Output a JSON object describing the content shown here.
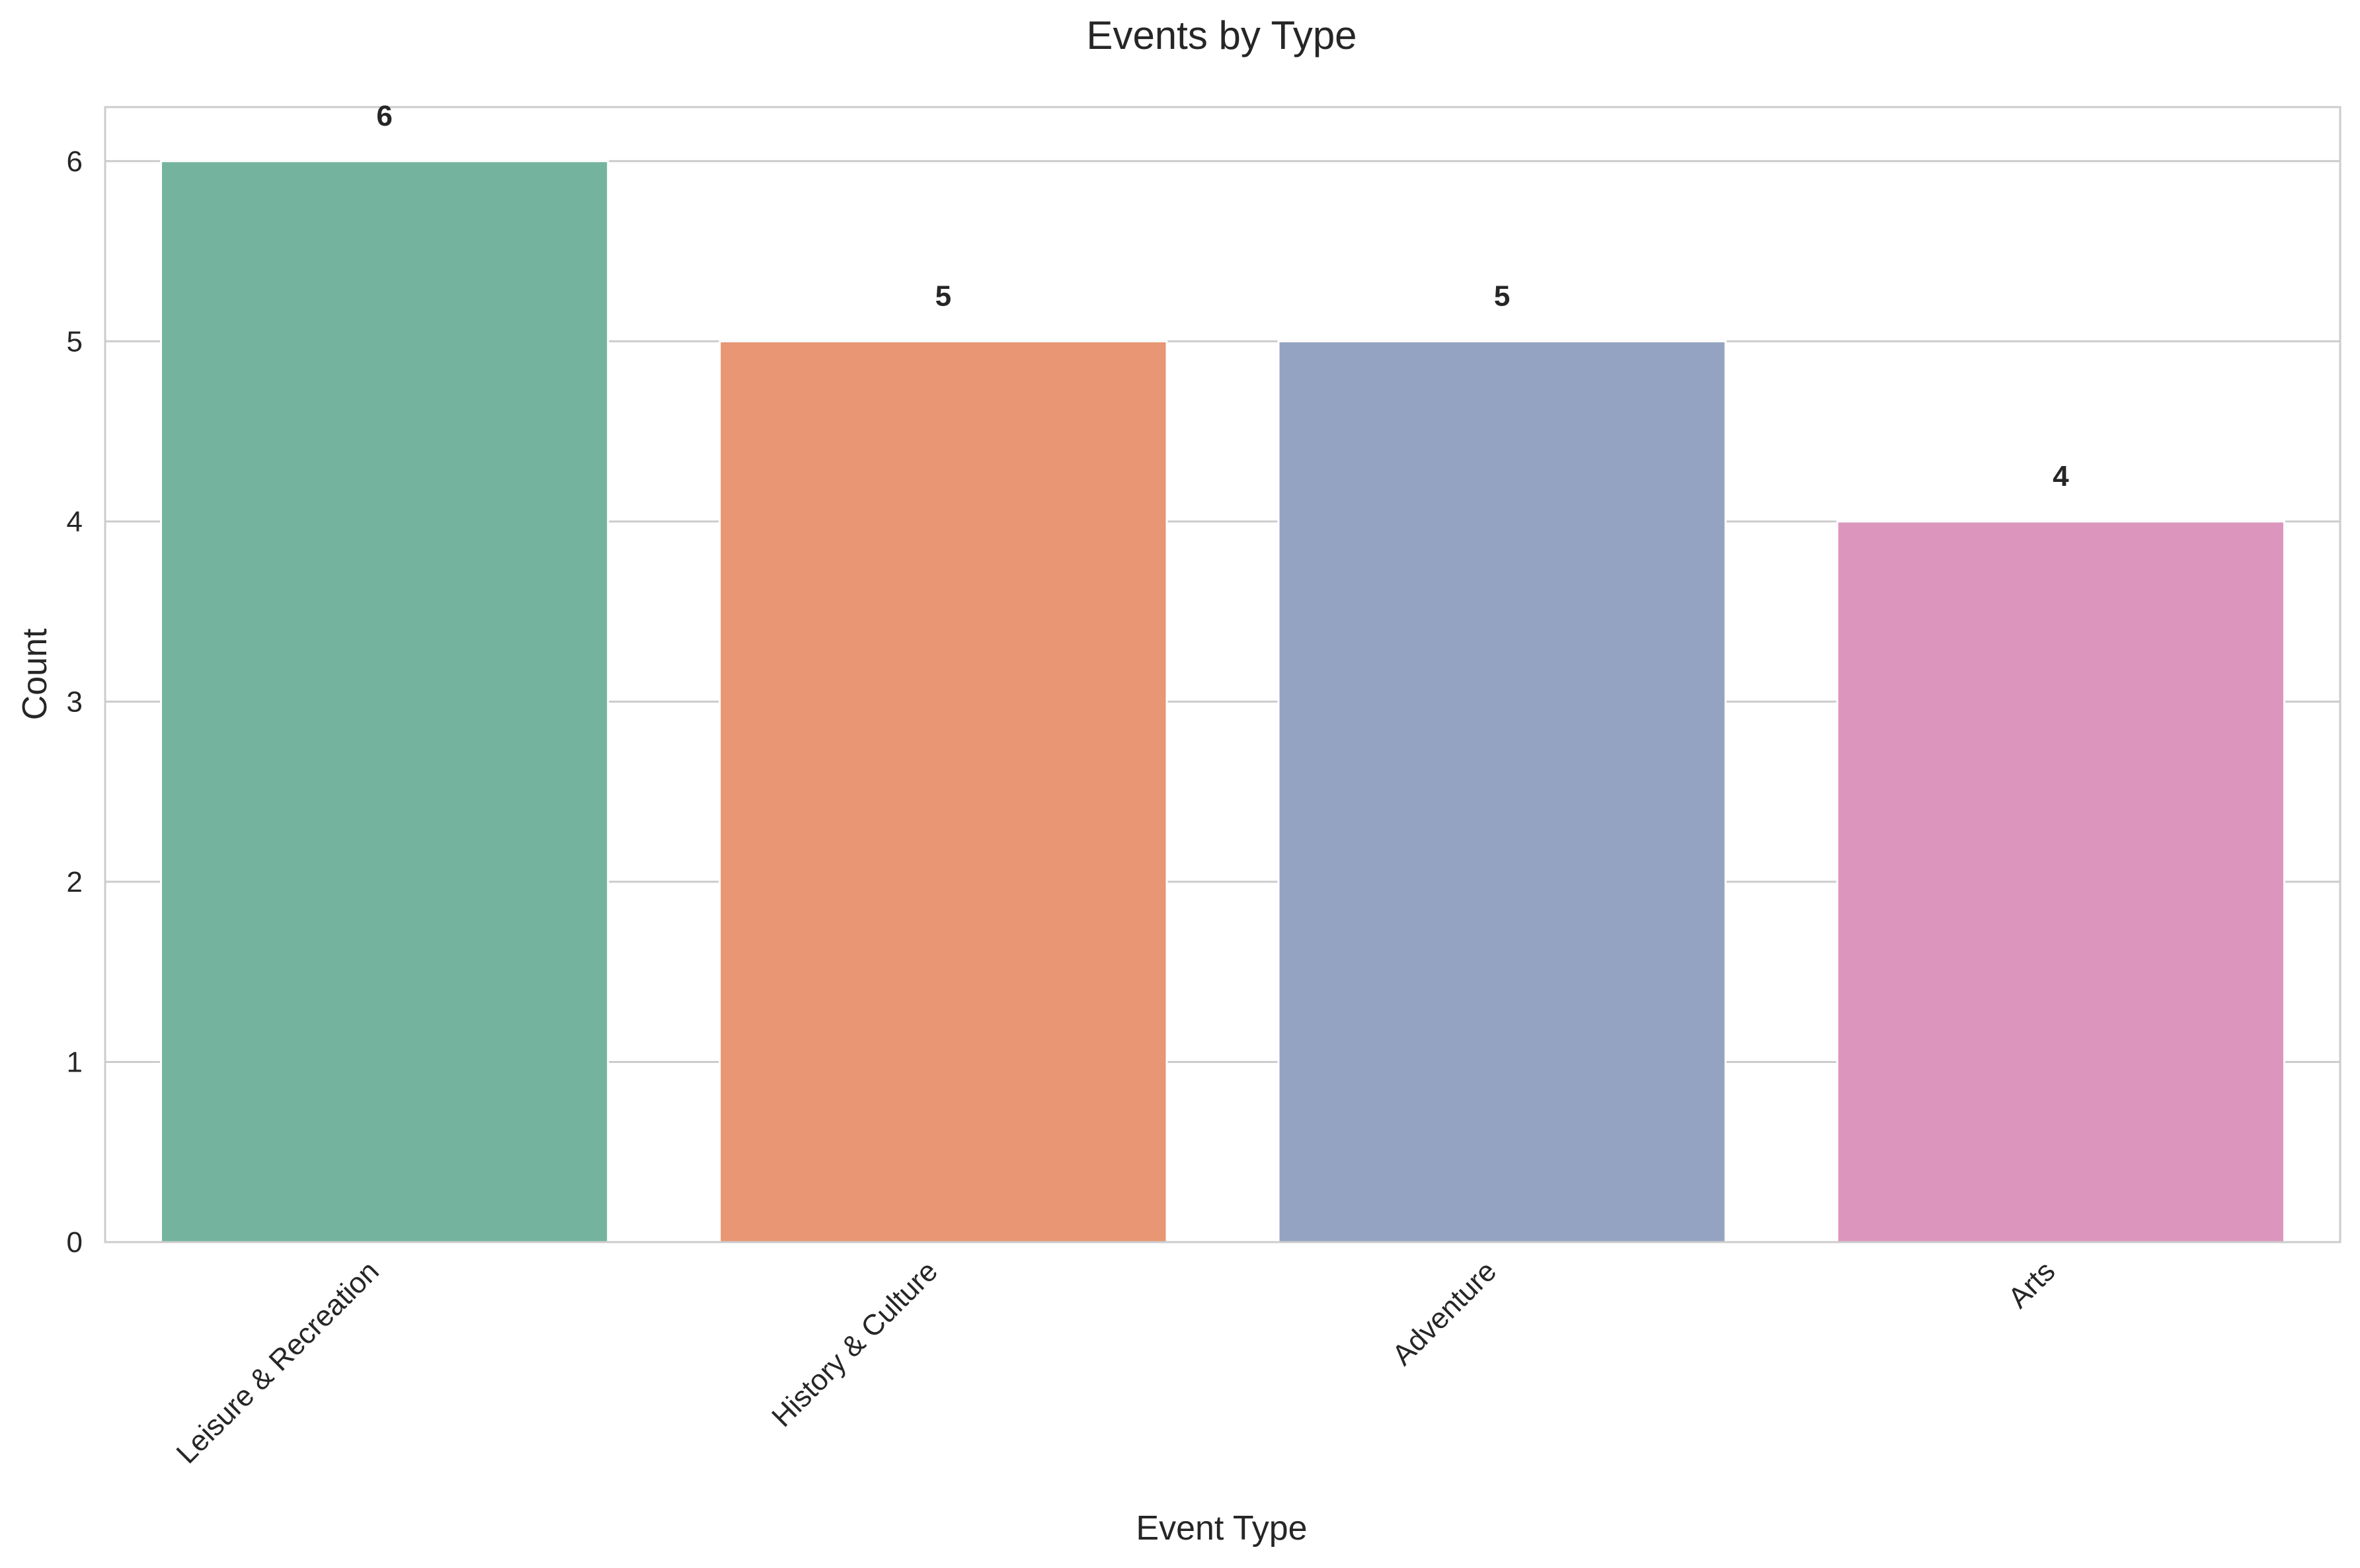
{
  "chart_data": {
    "type": "bar",
    "title": "Events by Type",
    "xlabel": "Event Type",
    "ylabel": "Count",
    "categories": [
      "Leisure & Recreation",
      "History & Culture",
      "Adventure",
      "Arts"
    ],
    "values": [
      6,
      5,
      5,
      4
    ],
    "ylim": [
      0,
      6.3
    ],
    "yticks": [
      0,
      1,
      2,
      3,
      4,
      5,
      6
    ],
    "grid": true,
    "colors": [
      "#74b49f",
      "#e89673",
      "#94a3c1",
      "#dc96be"
    ],
    "legend": "none"
  }
}
